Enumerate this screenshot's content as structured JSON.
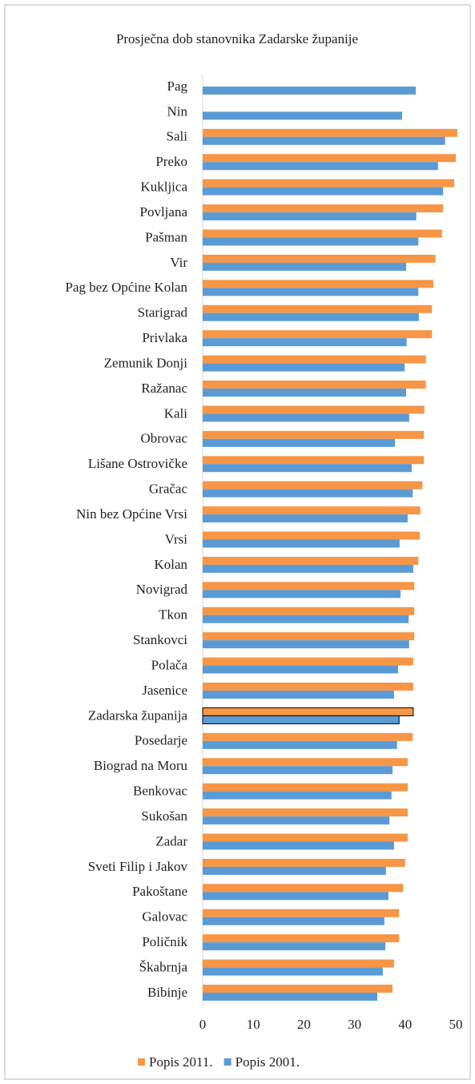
{
  "chart_data": {
    "type": "hbar",
    "title": "Prosječna dob stanovnika Zadarske županije",
    "categories": [
      "Pag",
      "Nin",
      "Sali",
      "Preko",
      "Kukljica",
      "Povljana",
      "Pašman",
      "Vir",
      "Pag bez Općine Kolan",
      "Starigrad",
      "Privlaka",
      "Zemunik Donji",
      "Ražanac",
      "Kali",
      "Obrovac",
      "Lišane Ostrovičke",
      "Gračac",
      "Nin bez Općine Vrsi",
      "Vrsi",
      "Kolan",
      "Novigrad",
      "Tkon",
      "Stankovci",
      "Polača",
      "Jasenice",
      "Zadarska županija",
      "Posedarje",
      "Biograd na Moru",
      "Benkovac",
      "Sukošan",
      "Zadar",
      "Sveti Filip i Jakov",
      "Pakoštane",
      "Galovac",
      "Poličnik",
      "Škabrnja",
      "Bibinje"
    ],
    "series": [
      {
        "name": "Popis 2011.",
        "color": "#f79646",
        "values": [
          null,
          null,
          50.3,
          50.0,
          49.7,
          47.5,
          47.3,
          46.0,
          45.6,
          45.3,
          45.3,
          44.1,
          44.1,
          43.8,
          43.7,
          43.7,
          43.4,
          43.0,
          42.9,
          42.6,
          41.8,
          41.8,
          41.8,
          41.6,
          41.6,
          41.6,
          41.5,
          40.5,
          40.5,
          40.5,
          40.5,
          40.0,
          39.6,
          38.8,
          38.8,
          37.8,
          37.5
        ]
      },
      {
        "name": "Popis 2001.",
        "color": "#5b9bd5",
        "values": [
          42.1,
          39.4,
          47.9,
          46.5,
          47.5,
          42.2,
          42.6,
          40.2,
          42.6,
          42.7,
          40.3,
          39.9,
          40.2,
          40.8,
          38.0,
          41.3,
          41.5,
          40.5,
          38.9,
          41.6,
          39.1,
          40.7,
          40.8,
          38.6,
          37.8,
          38.8,
          38.4,
          37.5,
          37.3,
          36.9,
          37.8,
          36.2,
          36.7,
          35.9,
          36.1,
          35.6,
          34.5
        ]
      }
    ],
    "highlight_index": 25,
    "xlim": [
      0,
      50.5
    ],
    "xticks": [
      0,
      10,
      20,
      30,
      40,
      50
    ],
    "legend": "bottom",
    "grid": false
  }
}
